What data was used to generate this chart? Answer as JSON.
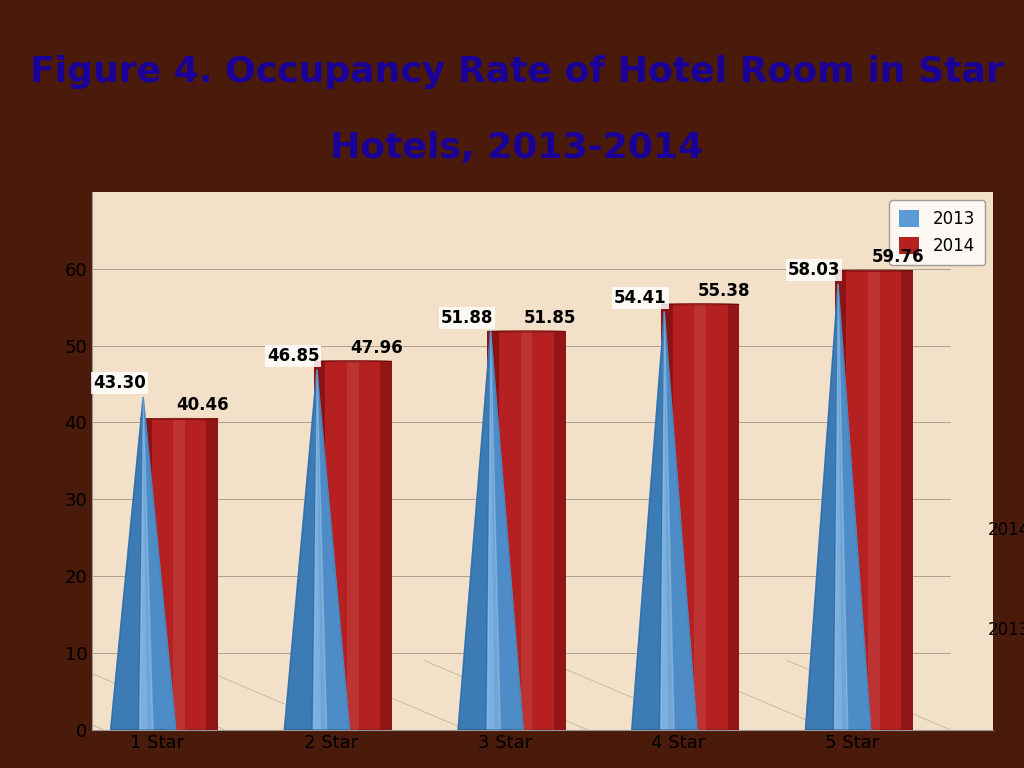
{
  "categories": [
    "1 Star",
    "2 Star",
    "3 Star",
    "4 Star",
    "5 Star"
  ],
  "values_2013": [
    43.3,
    46.85,
    51.88,
    54.41,
    58.03
  ],
  "values_2014": [
    40.46,
    47.96,
    51.85,
    55.38,
    59.76
  ],
  "title_line1": "Figure 4. Occupancy Rate of Hotel Room in Star",
  "title_line2": "Hotels, 2013-2014",
  "title_color": "#1a0099",
  "bg_color": "#f2e0c8",
  "outer_bg": "#4a1a0a",
  "ylim": [
    0,
    70
  ],
  "yticks": [
    0,
    10,
    20,
    30,
    40,
    50,
    60
  ],
  "legend_2013": "2013",
  "legend_2014": "2014",
  "cone_main": "#5b9bd5",
  "cone_light": "#a8d0f0",
  "cone_dark": "#1a5490",
  "cyl_main": "#b52020",
  "cyl_light": "#d06060",
  "cyl_dark": "#6b0a0a",
  "cyl_top": "#cc3030",
  "title_fontsize": 26,
  "axis_label_fontsize": 13,
  "value_fontsize": 12
}
